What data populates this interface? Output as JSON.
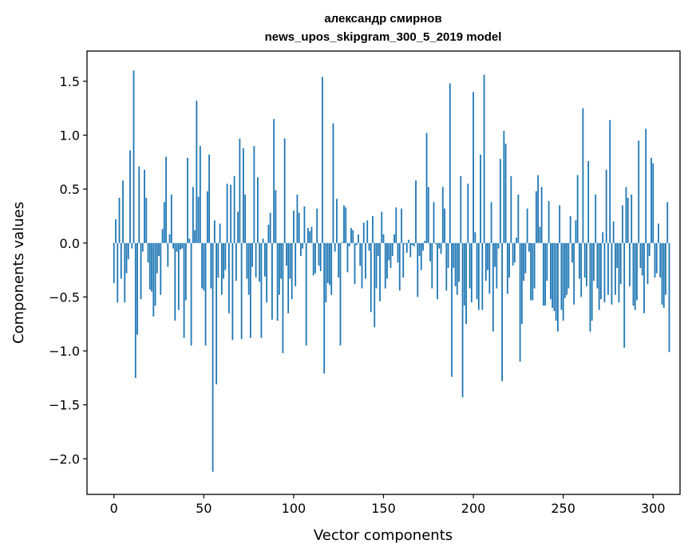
{
  "chart_data": {
    "type": "bar",
    "title_line1": "александр смирнов",
    "title_line2": "news_upos_skipgram_300_5_2019 model",
    "xlabel": "Vector components",
    "ylabel": "Components values",
    "xlim": [
      -15,
      315
    ],
    "ylim": [
      -2.33,
      1.78
    ],
    "xticks": [
      0,
      50,
      100,
      150,
      200,
      250,
      300
    ],
    "yticks": [
      -2.0,
      -1.5,
      -1.0,
      -0.5,
      0.0,
      0.5,
      1.0,
      1.5
    ],
    "ytick_labels": [
      "−2.0",
      "−1.5",
      "−1.0",
      "−0.5",
      "0.0",
      "0.5",
      "1.0",
      "1.5"
    ],
    "bar_color": "#1f77b4",
    "values": [
      -0.37,
      0.22,
      -0.55,
      0.42,
      -0.33,
      0.58,
      -0.55,
      -0.28,
      -0.15,
      0.86,
      -0.05,
      1.6,
      -1.25,
      -0.85,
      0.71,
      -0.52,
      -0.08,
      0.68,
      0.42,
      -0.18,
      -0.43,
      -0.45,
      -0.68,
      -0.58,
      -0.28,
      -0.12,
      -0.48,
      0.13,
      0.38,
      0.8,
      -0.22,
      0.08,
      0.45,
      -0.05,
      -0.72,
      -0.08,
      -0.62,
      -0.06,
      -0.05,
      -0.88,
      -0.53,
      0.79,
      0.04,
      -0.95,
      0.52,
      0.12,
      1.32,
      0.43,
      0.9,
      -0.42,
      -0.44,
      -0.95,
      0.48,
      0.82,
      -0.42,
      -2.12,
      0.21,
      -1.31,
      -0.32,
      0.18,
      -0.48,
      -0.33,
      -0.25,
      0.55,
      -0.65,
      0.54,
      -0.9,
      0.62,
      -0.35,
      0.29,
      0.97,
      -0.89,
      0.88,
      0.45,
      -0.33,
      -0.48,
      -0.88,
      -0.22,
      0.9,
      -0.32,
      0.61,
      -0.36,
      -0.88,
      0.04,
      -0.31,
      -0.55,
      0.17,
      0.28,
      -0.71,
      1.15,
      0.49,
      -0.72,
      -0.48,
      -0.33,
      -1.02,
      0.97,
      -0.21,
      -0.65,
      -0.33,
      -0.52,
      0.3,
      -0.4,
      0.45,
      0.28,
      -0.12,
      -0.05,
      0.34,
      -0.95,
      0.14,
      0.11,
      0.15,
      -0.3,
      -0.28,
      0.32,
      -0.21,
      -0.26,
      1.54,
      -1.21,
      -0.55,
      -0.37,
      -0.39,
      -0.48,
      1.11,
      -0.08,
      0.41,
      -0.32,
      -0.95,
      0.01,
      0.35,
      0.33,
      -0.27,
      -0.03,
      0.14,
      0.12,
      -0.38,
      -0.02,
      0.08,
      -0.21,
      -0.42,
      0.19,
      -0.33,
      0.21,
      -0.07,
      -0.64,
      0.25,
      -0.78,
      -0.42,
      -0.12,
      -0.54,
      0.29,
      0.08,
      -0.42,
      -0.33,
      -0.16,
      -0.23,
      -0.12,
      0.08,
      0.33,
      -0.18,
      -0.44,
      0.32,
      -0.32,
      -0.01,
      -0.09,
      0.03,
      -0.13,
      -0.02,
      -0.03,
      0.58,
      -0.5,
      -0.12,
      -0.25,
      -0.07,
      0.02,
      1.02,
      0.52,
      -0.17,
      -0.42,
      0.38,
      -0.01,
      -0.52,
      -0.05,
      -0.1,
      0.52,
      0.32,
      -0.44,
      -0.23,
      1.48,
      -1.24,
      -0.23,
      -0.4,
      -0.48,
      -0.36,
      0.62,
      -1.43,
      -0.58,
      -0.75,
      0.55,
      -0.42,
      -0.55,
      1.4,
      0.1,
      -0.52,
      -0.62,
      0.82,
      -0.62,
      1.56,
      -0.35,
      -0.25,
      -0.47,
      0.38,
      -0.82,
      -0.22,
      -0.42,
      -0.05,
      0.78,
      -1.28,
      1.04,
      0.92,
      -0.47,
      -0.32,
      0.62,
      -0.21,
      -0.18,
      0.05,
      0.45,
      -1.1,
      -0.75,
      -0.35,
      -0.28,
      0.32,
      -0.08,
      -0.53,
      -0.53,
      -0.42,
      0.48,
      0.63,
      0.15,
      0.52,
      -0.58,
      -0.58,
      -0.35,
      0.39,
      -0.52,
      -0.6,
      -0.63,
      -0.72,
      -0.82,
      0.35,
      -0.62,
      -0.72,
      -0.51,
      -0.48,
      -0.42,
      0.25,
      -0.18,
      -0.57,
      0.21,
      0.63,
      -0.33,
      -0.5,
      1.25,
      -0.32,
      -0.4,
      0.76,
      -0.82,
      -0.72,
      -0.35,
      0.45,
      -0.42,
      -0.62,
      -0.52,
      0.1,
      -0.55,
      0.68,
      -0.48,
      1.14,
      -0.57,
      0.2,
      -0.48,
      -0.23,
      -0.55,
      -0.38,
      0.35,
      -0.97,
      0.52,
      0.42,
      -0.4,
      0.45,
      -0.58,
      -0.62,
      -0.53,
      0.95,
      -0.23,
      -0.3,
      -0.65,
      1.06,
      -0.38,
      -0.12,
      0.79,
      0.74,
      -0.32,
      -0.28,
      0.18,
      -0.32,
      -0.57,
      -0.6,
      -0.48,
      0.38,
      -1.01
    ]
  }
}
